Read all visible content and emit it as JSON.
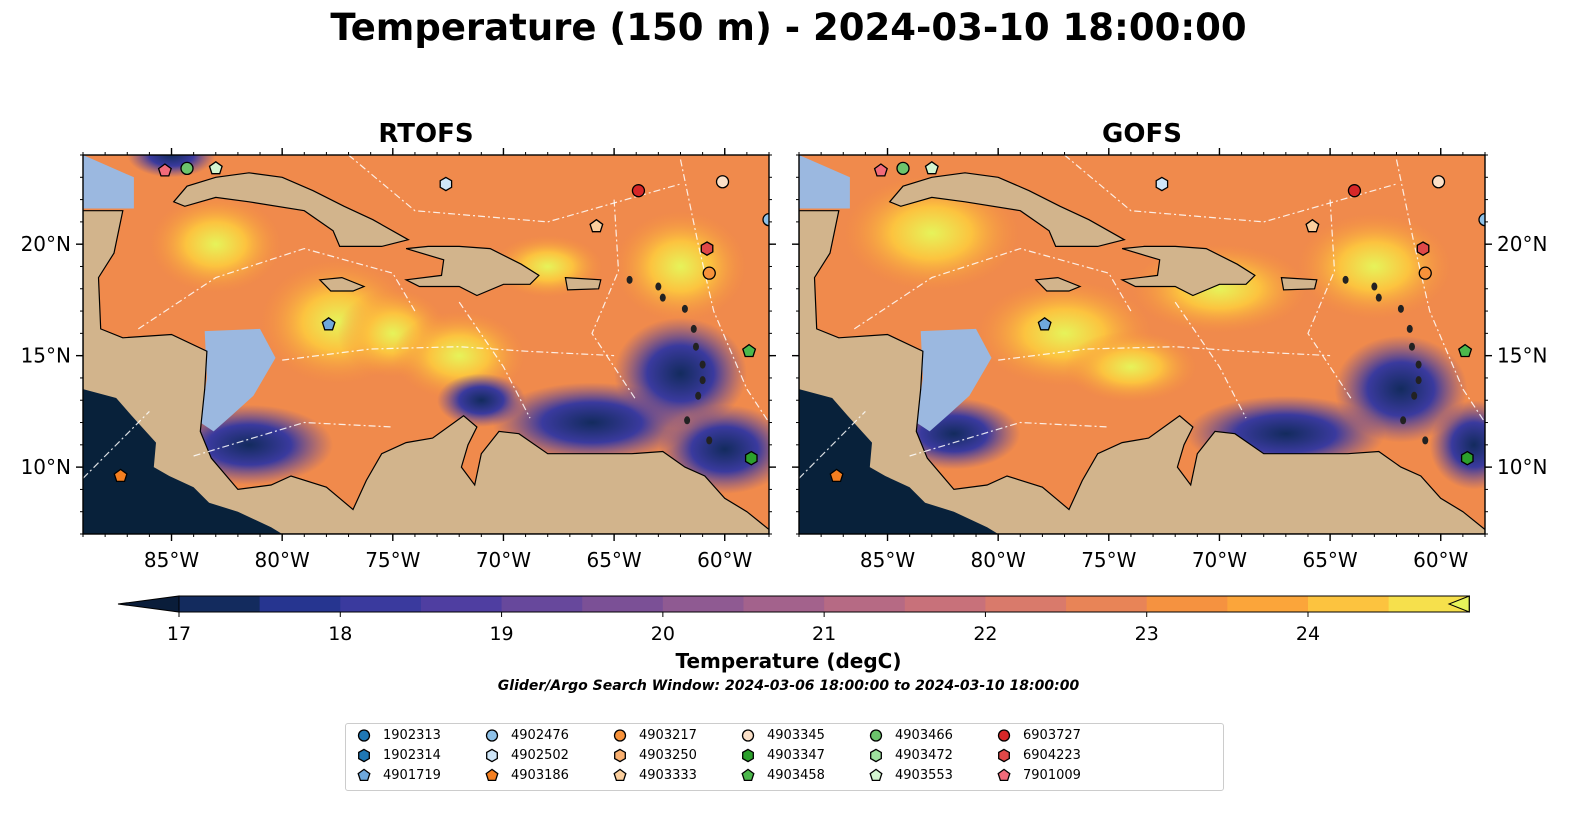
{
  "title": "Temperature (150 m) - 2024-03-10 18:00:00",
  "panels": [
    {
      "title": "RTOFS"
    },
    {
      "title": "GOFS"
    }
  ],
  "axes": {
    "lon_ticks": [
      "85°W",
      "80°W",
      "75°W",
      "70°W",
      "65°W",
      "60°W"
    ],
    "lat_ticks": [
      "10°N",
      "15°N",
      "20°N"
    ],
    "lon_range": [
      -89,
      -58
    ],
    "lat_range": [
      7,
      24
    ]
  },
  "colorbar": {
    "label": "Temperature (degC)",
    "ticks": [
      "17",
      "18",
      "19",
      "20",
      "21",
      "22",
      "23",
      "24"
    ],
    "range": [
      16.5,
      24.5
    ],
    "step": 0.5,
    "extend": "both",
    "colors": [
      "#0a1d3a",
      "#132b5e",
      "#263590",
      "#3a3a9e",
      "#4f3ea1",
      "#67489c",
      "#7b5096",
      "#8f5a92",
      "#a3628c",
      "#b66a84",
      "#c8717a",
      "#d97a6b",
      "#e88457",
      "#f59240",
      "#fba53a",
      "#fcc33f",
      "#f6e04c",
      "#e6f35a"
    ]
  },
  "subtitle": "Glider/Argo Search Window: 2024-03-06 18:00:00 to 2024-03-10 18:00:00",
  "land_color": "#d2b48c",
  "shelf_color": "#9bb8e0",
  "legend": [
    {
      "id": "1902313",
      "marker": "circle",
      "color": "#1f77b4"
    },
    {
      "id": "1902314",
      "marker": "hexagon",
      "color": "#1f77b4"
    },
    {
      "id": "4901719",
      "marker": "pentagon",
      "color": "#6fa8dc"
    },
    {
      "id": "4902476",
      "marker": "circle",
      "color": "#8ec1e8"
    },
    {
      "id": "4902502",
      "marker": "hexagon",
      "color": "#cfe6f8"
    },
    {
      "id": "4903186",
      "marker": "pentagon",
      "color": "#f57f20"
    },
    {
      "id": "4903217",
      "marker": "circle",
      "color": "#f7923a"
    },
    {
      "id": "4903250",
      "marker": "hexagon",
      "color": "#f9b070"
    },
    {
      "id": "4903333",
      "marker": "pentagon",
      "color": "#fbcf9e"
    },
    {
      "id": "4903345",
      "marker": "circle",
      "color": "#fbe0c8"
    },
    {
      "id": "4903347",
      "marker": "hexagon",
      "color": "#2ca02c"
    },
    {
      "id": "4903458",
      "marker": "pentagon",
      "color": "#4cb84c"
    },
    {
      "id": "4903466",
      "marker": "circle",
      "color": "#6cc46c"
    },
    {
      "id": "4903472",
      "marker": "hexagon",
      "color": "#9fe09f"
    },
    {
      "id": "4903553",
      "marker": "pentagon",
      "color": "#d4f5d0"
    },
    {
      "id": "6903727",
      "marker": "circle",
      "color": "#d62728"
    },
    {
      "id": "6904223",
      "marker": "hexagon",
      "color": "#e04848"
    },
    {
      "id": "7901009",
      "marker": "pentagon",
      "color": "#f26b7a"
    }
  ],
  "floats_on_map": [
    {
      "id": "7901009",
      "lon": -85.3,
      "lat": 23.3
    },
    {
      "id": "4903466",
      "lon": -84.3,
      "lat": 23.4
    },
    {
      "id": "4903553",
      "lon": -83.0,
      "lat": 23.4
    },
    {
      "id": "4902502",
      "lon": -72.6,
      "lat": 22.7
    },
    {
      "id": "6903727",
      "lon": -63.9,
      "lat": 22.4
    },
    {
      "id": "4903345",
      "lon": -60.1,
      "lat": 22.8
    },
    {
      "id": "4903333",
      "lon": -65.8,
      "lat": 20.8
    },
    {
      "id": "4902476",
      "lon": -58.0,
      "lat": 21.1
    },
    {
      "id": "6904223",
      "lon": -60.8,
      "lat": 19.8
    },
    {
      "id": "4903217",
      "lon": -60.7,
      "lat": 18.7
    },
    {
      "id": "4901719",
      "lon": -77.9,
      "lat": 16.4
    },
    {
      "id": "4903458",
      "lon": -58.9,
      "lat": 15.2
    },
    {
      "id": "4903347",
      "lon": -58.8,
      "lat": 10.4
    },
    {
      "id": "4903186",
      "lon": -87.3,
      "lat": 9.6
    }
  ]
}
